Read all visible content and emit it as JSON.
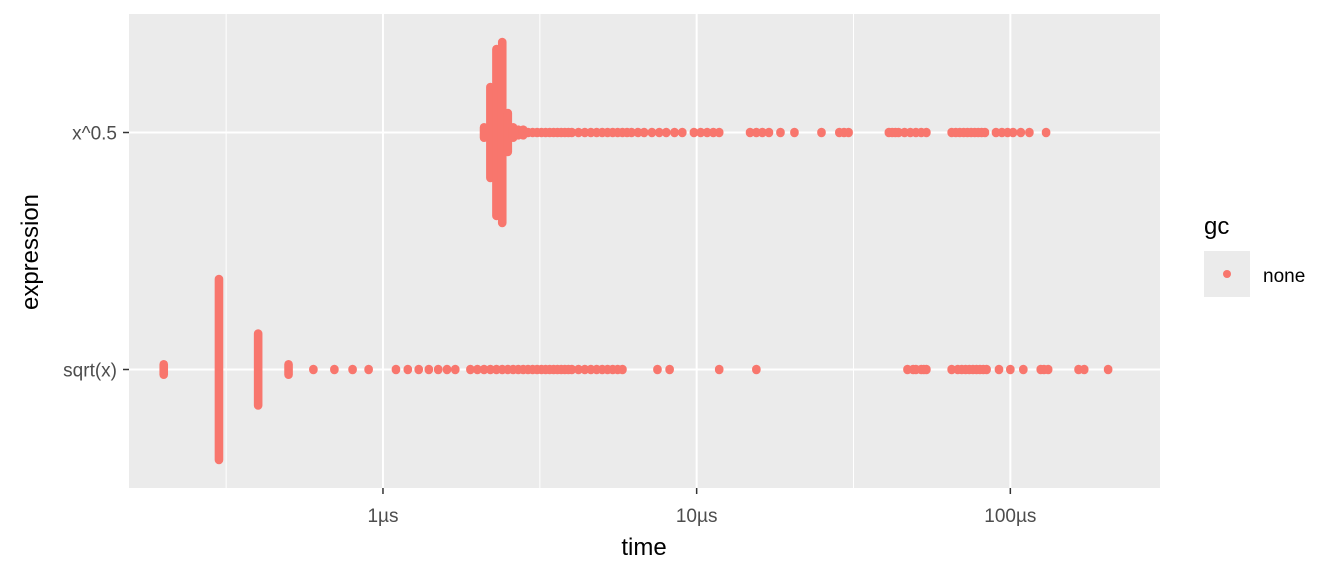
{
  "chart_data": {
    "type": "scatter",
    "title": "",
    "xlabel": "time",
    "ylabel": "expression",
    "x_scale": "log10",
    "x_unit": "µs",
    "xlim": [
      0.155,
      300
    ],
    "x_ticks": [
      {
        "value": 1,
        "label": "1µs"
      },
      {
        "value": 10,
        "label": "10µs"
      },
      {
        "value": 100,
        "label": "100µs"
      }
    ],
    "categories": [
      "sqrt(x)",
      "x^0.5"
    ],
    "grid": true,
    "panel_background": "#ebebeb",
    "gridline_color": "#ffffff",
    "point_color": "#f8766d",
    "legend": {
      "title": "gc",
      "position": "right",
      "entries": [
        {
          "label": "none",
          "color": "#f8766d"
        }
      ]
    },
    "series": [
      {
        "category": "sqrt(x)",
        "gc": "none",
        "x": [
          0.2,
          0.3,
          0.4,
          0.5,
          0.6,
          0.7,
          0.8,
          0.9,
          1.1,
          1.2,
          1.3,
          1.4,
          1.5,
          1.6,
          1.7,
          1.9,
          2.0,
          2.1,
          2.2,
          2.3,
          2.4,
          2.5,
          2.6,
          2.7,
          2.8,
          2.9,
          3.0,
          3.1,
          3.2,
          3.3,
          3.4,
          3.5,
          3.6,
          3.7,
          3.8,
          3.9,
          4.0,
          4.2,
          4.4,
          4.6,
          4.8,
          5.0,
          5.2,
          5.4,
          5.6,
          5.8,
          7.5,
          8.2,
          11.8,
          15.5,
          47,
          49,
          50,
          52,
          53,
          54,
          65,
          68,
          70,
          72,
          74,
          76,
          78,
          80,
          82,
          84,
          92,
          100,
          110,
          125,
          128,
          132,
          165,
          172,
          205
        ],
        "spread": [
          0.04,
          0.4,
          0.17,
          0.04,
          0.02,
          0.02,
          0.02,
          0.02,
          0.02,
          0.02,
          0.02,
          0.02,
          0.02,
          0.02,
          0.02,
          0.02,
          0.02,
          0.02,
          0.02,
          0.02,
          0.02,
          0.02,
          0.02,
          0.02,
          0.02,
          0.02,
          0.02,
          0.02,
          0.02,
          0.02,
          0.02,
          0.02,
          0.02,
          0.02,
          0.02,
          0.02,
          0.02,
          0.02,
          0.02,
          0.02,
          0.02,
          0.02,
          0.02,
          0.02,
          0.02,
          0.02,
          0.02,
          0.02,
          0.02,
          0.02,
          0.02,
          0.02,
          0.02,
          0.02,
          0.02,
          0.02,
          0.02,
          0.02,
          0.02,
          0.02,
          0.02,
          0.02,
          0.02,
          0.02,
          0.02,
          0.02,
          0.02,
          0.02,
          0.02,
          0.02,
          0.02,
          0.02,
          0.02,
          0.02,
          0.02
        ]
      },
      {
        "category": "x^0.5",
        "gc": "none",
        "x": [
          2.1,
          2.2,
          2.3,
          2.4,
          2.5,
          2.6,
          2.7,
          2.8,
          2.9,
          3.0,
          3.1,
          3.2,
          3.3,
          3.4,
          3.5,
          3.6,
          3.7,
          3.8,
          3.9,
          4.0,
          4.2,
          4.4,
          4.6,
          4.8,
          5.0,
          5.2,
          5.4,
          5.6,
          5.8,
          6.0,
          6.2,
          6.5,
          6.8,
          7.2,
          7.6,
          8.0,
          8.5,
          9.0,
          9.8,
          10.3,
          10.8,
          11.3,
          11.8,
          14.8,
          15.5,
          16.2,
          17.0,
          18.5,
          20.5,
          25,
          28.5,
          29.5,
          30.5,
          41,
          42,
          43,
          44,
          46,
          48,
          50,
          52,
          54,
          65,
          67,
          69,
          71,
          73,
          75,
          77,
          79,
          81,
          83,
          90,
          94,
          98,
          102,
          108,
          115,
          130
        ],
        "spread": [
          0.04,
          0.21,
          0.37,
          0.4,
          0.1,
          0.04,
          0.03,
          0.03,
          0.02,
          0.02,
          0.02,
          0.02,
          0.02,
          0.02,
          0.02,
          0.02,
          0.02,
          0.02,
          0.02,
          0.02,
          0.02,
          0.02,
          0.02,
          0.02,
          0.02,
          0.02,
          0.02,
          0.02,
          0.02,
          0.02,
          0.02,
          0.02,
          0.02,
          0.02,
          0.02,
          0.02,
          0.02,
          0.02,
          0.02,
          0.02,
          0.02,
          0.02,
          0.02,
          0.02,
          0.02,
          0.02,
          0.02,
          0.02,
          0.02,
          0.02,
          0.02,
          0.02,
          0.02,
          0.02,
          0.02,
          0.02,
          0.02,
          0.02,
          0.02,
          0.02,
          0.02,
          0.02,
          0.02,
          0.02,
          0.02,
          0.02,
          0.02,
          0.02,
          0.02,
          0.02,
          0.02,
          0.02,
          0.02,
          0.02,
          0.02,
          0.02,
          0.02,
          0.02,
          0.02
        ]
      }
    ]
  }
}
